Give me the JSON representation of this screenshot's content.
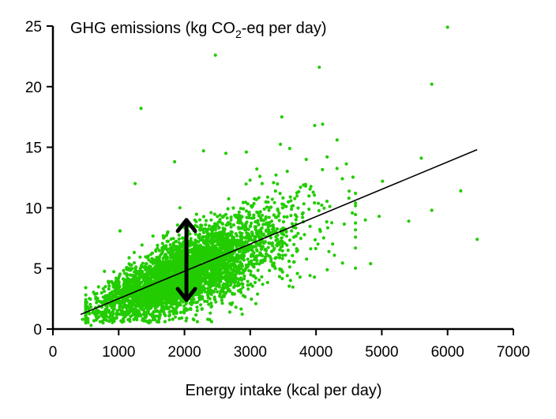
{
  "chart_data": {
    "type": "scatter",
    "title": {
      "before_sub": "GHG emissions (kg CO",
      "sub": "2",
      "after_sub": "-eq per day)"
    },
    "xlabel": "Energy intake (kcal per day)",
    "ylabel": "",
    "xlim": [
      0,
      7000
    ],
    "ylim": [
      0,
      25
    ],
    "x_ticks": [
      0,
      1000,
      2000,
      3000,
      4000,
      5000,
      6000,
      7000
    ],
    "y_ticks": [
      0,
      5,
      10,
      15,
      20,
      25
    ],
    "grid": false,
    "point_color": "#22cc00",
    "line_color": "#000000",
    "trend_line": {
      "x": [
        420,
        6450
      ],
      "y": [
        1.2,
        14.8
      ]
    },
    "variability_arrow": {
      "x": 2030,
      "y_low": 2.4,
      "y_high": 9.0
    },
    "cloud": {
      "count": 4200,
      "x_center": 1900,
      "x_spread": 620,
      "x_min": 500,
      "x_max": 4600,
      "y_intercept": 0.1,
      "y_slope": 0.00225,
      "y_spread": 1.35
    },
    "outliers": [
      {
        "x": 6000,
        "y": 24.9
      },
      {
        "x": 2470,
        "y": 22.6
      },
      {
        "x": 4050,
        "y": 21.6
      },
      {
        "x": 5760,
        "y": 20.2
      },
      {
        "x": 1340,
        "y": 18.2
      },
      {
        "x": 3480,
        "y": 17.5
      },
      {
        "x": 4100,
        "y": 16.9
      },
      {
        "x": 3980,
        "y": 16.8
      },
      {
        "x": 4320,
        "y": 15.6
      },
      {
        "x": 3600,
        "y": 14.9
      },
      {
        "x": 5600,
        "y": 14.1
      },
      {
        "x": 3850,
        "y": 14.0
      },
      {
        "x": 5010,
        "y": 12.2
      },
      {
        "x": 6200,
        "y": 11.4
      },
      {
        "x": 4500,
        "y": 10.8
      },
      {
        "x": 5760,
        "y": 9.8
      },
      {
        "x": 4960,
        "y": 9.3
      },
      {
        "x": 4750,
        "y": 9.0
      },
      {
        "x": 5410,
        "y": 8.9
      },
      {
        "x": 6450,
        "y": 7.4
      },
      {
        "x": 4830,
        "y": 5.4
      },
      {
        "x": 2630,
        "y": 14.5
      },
      {
        "x": 2940,
        "y": 14.6
      },
      {
        "x": 1850,
        "y": 13.8
      },
      {
        "x": 2290,
        "y": 14.7
      },
      {
        "x": 3100,
        "y": 13.2
      },
      {
        "x": 1250,
        "y": 12.0
      },
      {
        "x": 1020,
        "y": 8.1
      },
      {
        "x": 4400,
        "y": 12.4
      },
      {
        "x": 580,
        "y": 0.3
      },
      {
        "x": 450,
        "y": 0.8
      }
    ]
  }
}
